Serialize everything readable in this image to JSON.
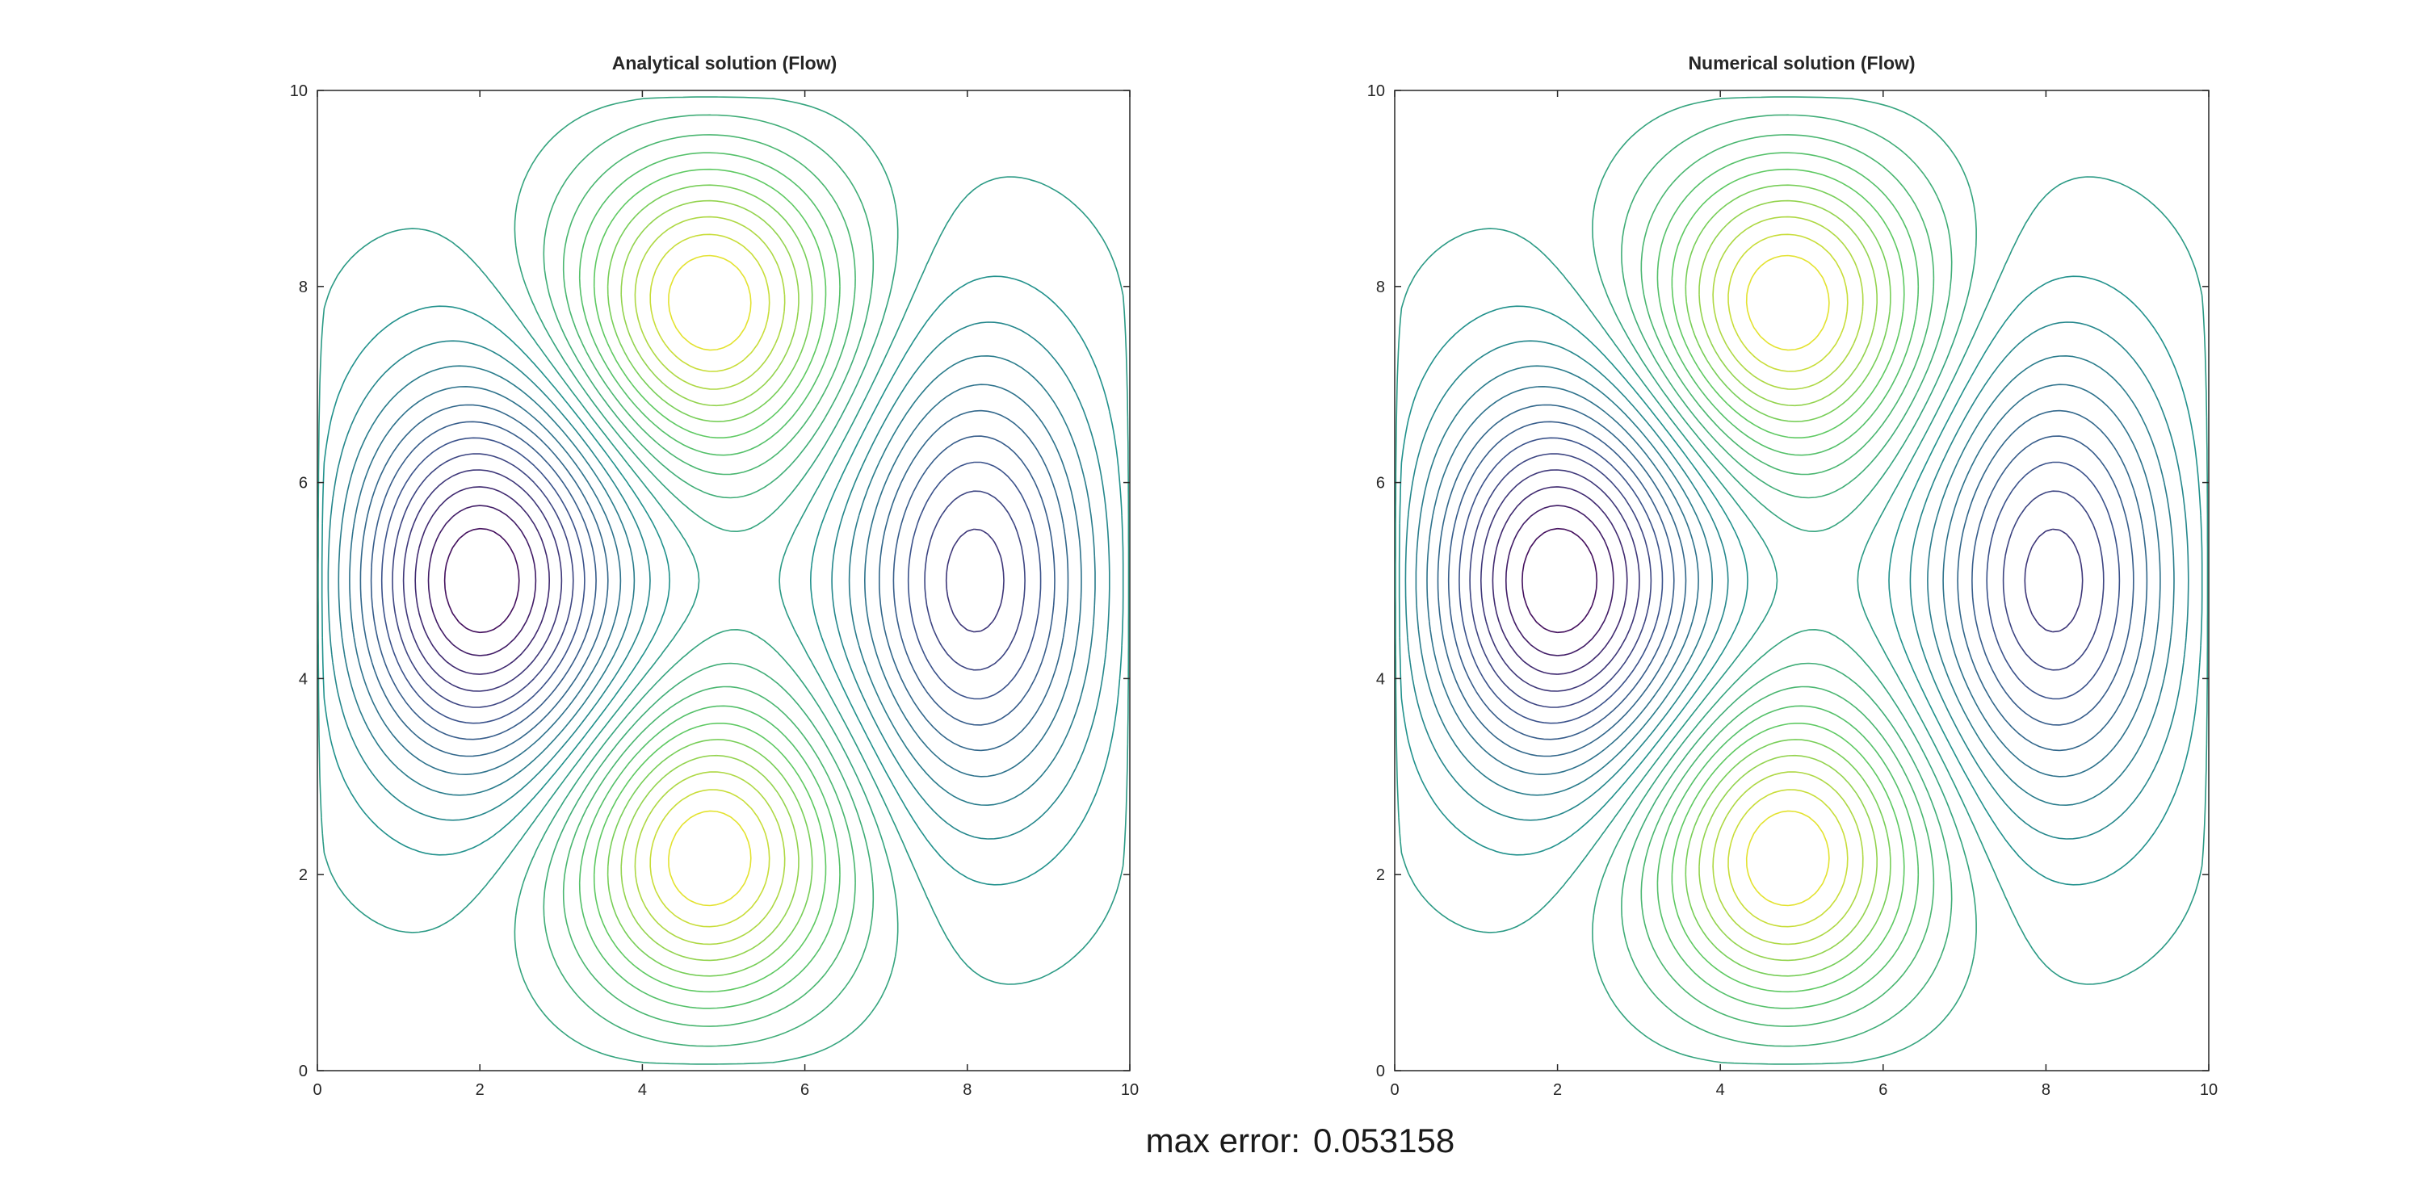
{
  "chart_data": [
    {
      "type": "contour",
      "title": "Analytical solution (Flow)",
      "xlim": [
        0,
        10
      ],
      "ylim": [
        0,
        10
      ],
      "xticks": [
        0,
        2,
        4,
        6,
        8,
        10
      ],
      "yticks": [
        0,
        2,
        4,
        6,
        8,
        10
      ],
      "xlabel": "",
      "ylabel": "",
      "colormap": "viridis",
      "grid": false,
      "contour_levels": 23
    },
    {
      "type": "contour",
      "title": "Numerical solution (Flow)",
      "xlim": [
        0,
        10
      ],
      "ylim": [
        0,
        10
      ],
      "xticks": [
        0,
        2,
        4,
        6,
        8,
        10
      ],
      "yticks": [
        0,
        2,
        4,
        6,
        8,
        10
      ],
      "xlabel": "",
      "ylabel": "",
      "colormap": "viridis",
      "grid": false,
      "contour_levels": 23
    }
  ],
  "footer": {
    "label": "max error:",
    "value": "0.053158"
  },
  "colors": {
    "axis": "#262626",
    "background": "#ffffff"
  }
}
